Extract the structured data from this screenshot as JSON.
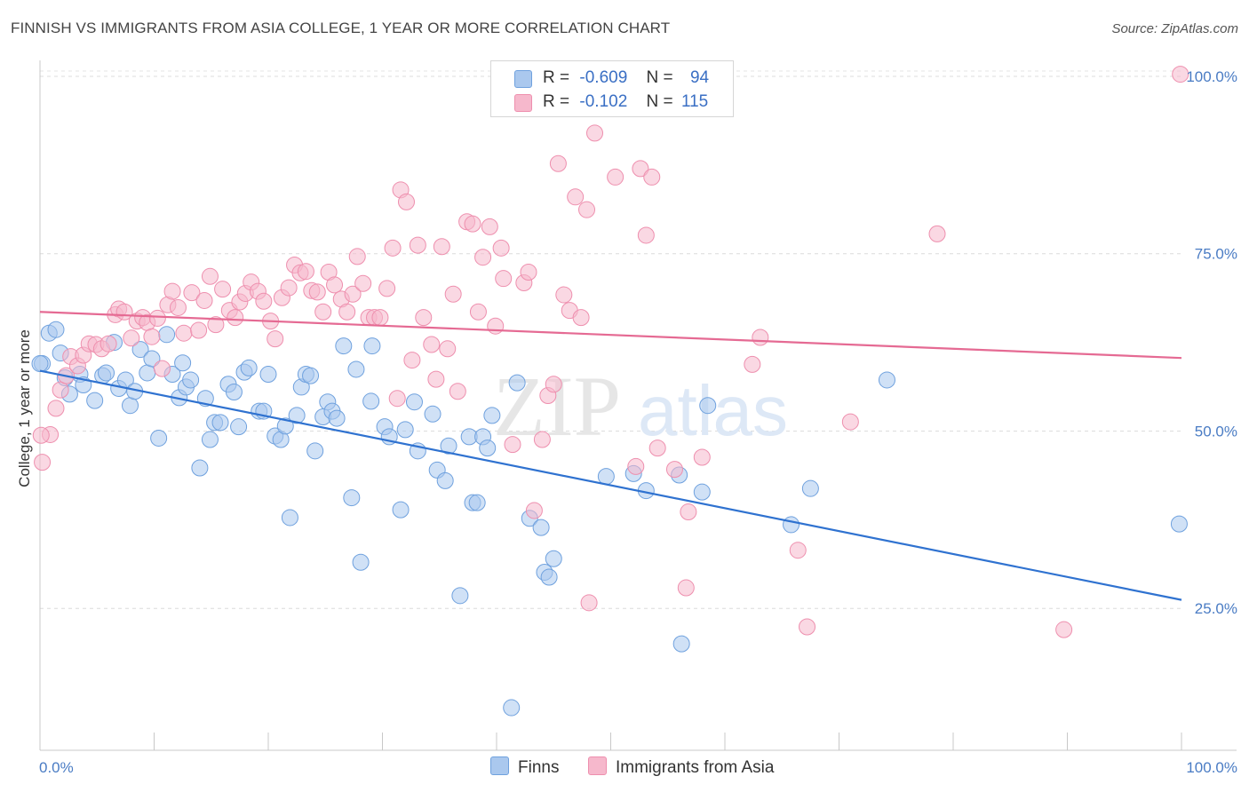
{
  "header": {
    "title": "FINNISH VS IMMIGRANTS FROM ASIA COLLEGE, 1 YEAR OR MORE CORRELATION CHART",
    "source": "Source: ZipAtlas.com"
  },
  "legend": {
    "rows": [
      {
        "r_label": "R =",
        "r_value": "-0.609",
        "n_label": "N =",
        "n_value": "94",
        "color": "#aac8ee"
      },
      {
        "r_label": "R =",
        "r_value": "-0.102",
        "n_label": "N =",
        "n_value": "115",
        "color": "#f6b8cc"
      }
    ]
  },
  "bottom_legend": [
    {
      "label": "Finns",
      "color": "#aac8ee"
    },
    {
      "label": "Immigrants from Asia",
      "color": "#f6b8cc"
    }
  ],
  "watermark": {
    "zip": "ZIP",
    "atlas": "atlas"
  },
  "chart_data": {
    "type": "scatter",
    "title": "FINNISH VS IMMIGRANTS FROM ASIA COLLEGE, 1 YEAR OR MORE CORRELATION CHART",
    "ylabel": "College, 1 year or more",
    "xlabel": "",
    "xlim": [
      0,
      100
    ],
    "ylim": [
      5,
      102
    ],
    "x_tick_labels": [
      "0.0%",
      "100.0%"
    ],
    "y_ticks": [
      25,
      50,
      75,
      100
    ],
    "y_tick_labels": [
      "25.0%",
      "50.0%",
      "75.0%",
      "100.0%"
    ],
    "grid": "horizontal dashed",
    "legend_placement": "top-center and bottom",
    "series": [
      {
        "name": "Finns",
        "color": "#6fa1de",
        "fill": "#aac8ee",
        "trend": {
          "x": [
            0,
            100
          ],
          "y": [
            58.5,
            26.2
          ],
          "color": "#2f72d0"
        },
        "points": [
          [
            0.2,
            59.5
          ],
          [
            0.8,
            63.8
          ],
          [
            1.4,
            64.3
          ],
          [
            1.8,
            61.0
          ],
          [
            2.2,
            57.5
          ],
          [
            2.6,
            55.2
          ],
          [
            3.5,
            58.0
          ],
          [
            3.8,
            56.5
          ],
          [
            4.8,
            54.3
          ],
          [
            5.5,
            57.8
          ],
          [
            5.8,
            58.2
          ],
          [
            6.5,
            62.5
          ],
          [
            6.9,
            56.0
          ],
          [
            7.5,
            57.2
          ],
          [
            7.9,
            53.6
          ],
          [
            8.3,
            55.6
          ],
          [
            8.8,
            61.5
          ],
          [
            9.4,
            58.2
          ],
          [
            9.8,
            60.2
          ],
          [
            10.4,
            49.0
          ],
          [
            11.1,
            63.6
          ],
          [
            11.6,
            58.0
          ],
          [
            12.2,
            54.7
          ],
          [
            12.5,
            59.6
          ],
          [
            12.8,
            56.2
          ],
          [
            13.2,
            57.2
          ],
          [
            14.0,
            44.8
          ],
          [
            14.5,
            54.6
          ],
          [
            14.9,
            48.8
          ],
          [
            15.3,
            51.2
          ],
          [
            15.8,
            51.2
          ],
          [
            16.5,
            56.6
          ],
          [
            17.0,
            55.5
          ],
          [
            17.4,
            50.6
          ],
          [
            17.9,
            58.3
          ],
          [
            18.3,
            58.9
          ],
          [
            19.2,
            52.8
          ],
          [
            19.6,
            52.8
          ],
          [
            20.0,
            58.0
          ],
          [
            20.6,
            49.3
          ],
          [
            21.1,
            48.8
          ],
          [
            21.5,
            50.7
          ],
          [
            21.9,
            37.8
          ],
          [
            22.5,
            52.2
          ],
          [
            22.9,
            56.2
          ],
          [
            23.3,
            58.0
          ],
          [
            23.7,
            57.8
          ],
          [
            24.1,
            47.2
          ],
          [
            24.8,
            52.0
          ],
          [
            25.2,
            54.1
          ],
          [
            25.6,
            52.8
          ],
          [
            26.0,
            51.8
          ],
          [
            26.6,
            62.0
          ],
          [
            27.3,
            40.6
          ],
          [
            27.7,
            58.7
          ],
          [
            28.1,
            31.5
          ],
          [
            29.1,
            62.0
          ],
          [
            29.0,
            54.2
          ],
          [
            30.2,
            50.6
          ],
          [
            30.6,
            49.2
          ],
          [
            31.6,
            38.9
          ],
          [
            32.0,
            50.2
          ],
          [
            32.8,
            54.1
          ],
          [
            33.1,
            47.2
          ],
          [
            34.4,
            52.4
          ],
          [
            34.8,
            44.5
          ],
          [
            35.5,
            43.0
          ],
          [
            35.8,
            47.9
          ],
          [
            36.8,
            26.8
          ],
          [
            37.6,
            49.2
          ],
          [
            37.9,
            39.9
          ],
          [
            38.3,
            39.9
          ],
          [
            38.8,
            49.2
          ],
          [
            39.2,
            47.6
          ],
          [
            39.6,
            52.2
          ],
          [
            41.3,
            11.0
          ],
          [
            41.8,
            56.8
          ],
          [
            42.9,
            37.7
          ],
          [
            43.9,
            36.4
          ],
          [
            44.2,
            30.1
          ],
          [
            44.6,
            29.4
          ],
          [
            45.0,
            32.0
          ],
          [
            49.6,
            43.6
          ],
          [
            52.0,
            44.0
          ],
          [
            53.1,
            41.6
          ],
          [
            56.0,
            43.8
          ],
          [
            56.2,
            20.0
          ],
          [
            58.0,
            41.4
          ],
          [
            58.5,
            53.6
          ],
          [
            65.8,
            36.8
          ],
          [
            67.5,
            41.9
          ],
          [
            74.2,
            57.2
          ],
          [
            99.8,
            36.9
          ],
          [
            0.0,
            59.5
          ]
        ]
      },
      {
        "name": "Immigrants from Asia",
        "color": "#ee8fae",
        "fill": "#f6b8cc",
        "trend": {
          "x": [
            0,
            100
          ],
          "y": [
            66.8,
            60.3
          ],
          "color": "#e56a93"
        },
        "points": [
          [
            0.2,
            45.6
          ],
          [
            0.9,
            49.5
          ],
          [
            1.4,
            53.2
          ],
          [
            1.8,
            55.8
          ],
          [
            2.3,
            57.8
          ],
          [
            2.7,
            60.5
          ],
          [
            3.3,
            59.2
          ],
          [
            3.8,
            60.7
          ],
          [
            4.3,
            62.3
          ],
          [
            4.9,
            62.2
          ],
          [
            5.4,
            61.6
          ],
          [
            6.0,
            62.3
          ],
          [
            6.6,
            66.4
          ],
          [
            6.9,
            67.2
          ],
          [
            7.4,
            66.8
          ],
          [
            8.0,
            63.1
          ],
          [
            8.5,
            65.5
          ],
          [
            9.0,
            66.0
          ],
          [
            9.4,
            65.3
          ],
          [
            9.8,
            63.3
          ],
          [
            10.3,
            65.9
          ],
          [
            10.7,
            58.8
          ],
          [
            11.2,
            67.8
          ],
          [
            11.6,
            69.7
          ],
          [
            12.1,
            67.4
          ],
          [
            12.6,
            63.8
          ],
          [
            13.3,
            69.5
          ],
          [
            13.9,
            64.2
          ],
          [
            14.4,
            68.4
          ],
          [
            14.9,
            71.8
          ],
          [
            15.4,
            65.0
          ],
          [
            16.0,
            70.0
          ],
          [
            16.6,
            67.0
          ],
          [
            17.1,
            66.0
          ],
          [
            17.5,
            68.2
          ],
          [
            18.0,
            69.4
          ],
          [
            18.5,
            71.0
          ],
          [
            19.1,
            69.7
          ],
          [
            19.6,
            68.3
          ],
          [
            20.2,
            65.5
          ],
          [
            20.6,
            63.0
          ],
          [
            21.2,
            68.8
          ],
          [
            21.8,
            70.2
          ],
          [
            22.3,
            73.4
          ],
          [
            22.8,
            72.3
          ],
          [
            23.3,
            72.5
          ],
          [
            23.8,
            69.8
          ],
          [
            24.3,
            69.6
          ],
          [
            24.8,
            66.8
          ],
          [
            25.3,
            72.4
          ],
          [
            25.8,
            70.6
          ],
          [
            26.4,
            68.6
          ],
          [
            26.9,
            66.8
          ],
          [
            27.4,
            69.3
          ],
          [
            27.8,
            74.6
          ],
          [
            28.3,
            70.8
          ],
          [
            28.8,
            66.0
          ],
          [
            29.3,
            66.0
          ],
          [
            29.8,
            66.0
          ],
          [
            30.4,
            70.1
          ],
          [
            30.9,
            75.8
          ],
          [
            31.3,
            54.6
          ],
          [
            31.6,
            84.0
          ],
          [
            32.1,
            82.3
          ],
          [
            32.6,
            60.0
          ],
          [
            33.1,
            76.2
          ],
          [
            33.6,
            66.0
          ],
          [
            34.3,
            62.2
          ],
          [
            34.7,
            57.3
          ],
          [
            35.2,
            76.0
          ],
          [
            35.7,
            61.6
          ],
          [
            36.2,
            69.3
          ],
          [
            36.6,
            55.6
          ],
          [
            37.4,
            79.5
          ],
          [
            37.9,
            79.2
          ],
          [
            38.4,
            66.8
          ],
          [
            38.8,
            74.5
          ],
          [
            39.4,
            78.8
          ],
          [
            39.9,
            64.8
          ],
          [
            40.4,
            75.8
          ],
          [
            40.6,
            71.5
          ],
          [
            41.4,
            48.1
          ],
          [
            42.4,
            70.9
          ],
          [
            42.8,
            72.4
          ],
          [
            43.3,
            38.8
          ],
          [
            44.0,
            48.8
          ],
          [
            44.5,
            55.0
          ],
          [
            45.0,
            56.6
          ],
          [
            45.4,
            87.7
          ],
          [
            45.9,
            69.2
          ],
          [
            46.4,
            67.0
          ],
          [
            46.9,
            83.0
          ],
          [
            47.4,
            66.0
          ],
          [
            47.9,
            81.2
          ],
          [
            48.1,
            25.8
          ],
          [
            48.6,
            92.0
          ],
          [
            50.4,
            85.8
          ],
          [
            52.2,
            45.0
          ],
          [
            52.6,
            87.0
          ],
          [
            53.1,
            77.6
          ],
          [
            53.6,
            85.8
          ],
          [
            54.1,
            47.6
          ],
          [
            55.6,
            44.6
          ],
          [
            56.6,
            27.9
          ],
          [
            56.8,
            38.6
          ],
          [
            58.0,
            46.3
          ],
          [
            62.4,
            59.4
          ],
          [
            63.1,
            63.2
          ],
          [
            66.4,
            33.2
          ],
          [
            67.2,
            22.4
          ],
          [
            71.0,
            51.3
          ],
          [
            78.6,
            77.8
          ],
          [
            89.7,
            22.0
          ],
          [
            99.9,
            100.3
          ],
          [
            0.1,
            49.4
          ]
        ]
      }
    ]
  }
}
